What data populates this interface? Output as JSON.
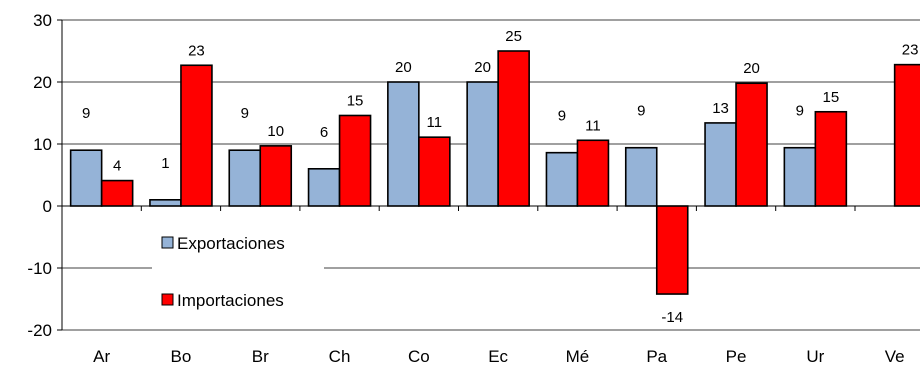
{
  "chart_data": {
    "type": "bar",
    "categories": [
      "Ar",
      "Bo",
      "Br",
      "Ch",
      "Co",
      "Ec",
      "Mé",
      "Pa",
      "Pe",
      "Ur",
      "Ve"
    ],
    "series": [
      {
        "name": "Exportaciones",
        "color": "#95b3d7",
        "values": [
          9,
          1,
          9,
          6,
          20,
          20,
          8.6,
          9.4,
          13.4,
          9.4,
          null
        ],
        "labels": [
          "9",
          "1",
          "9",
          "6",
          "20",
          "20",
          "9",
          "9",
          "13",
          "9",
          ""
        ]
      },
      {
        "name": "Importaciones",
        "color": "#ff0000",
        "values": [
          4.1,
          22.7,
          9.7,
          14.6,
          11.1,
          25,
          10.6,
          -14.2,
          19.8,
          15.2,
          22.8
        ],
        "labels": [
          "4",
          "23",
          "10",
          "15",
          "11",
          "25",
          "11",
          "-14",
          "20",
          "15",
          "23"
        ]
      }
    ],
    "yticks": [
      "-20",
      "-10",
      "0",
      "10",
      "20",
      "30"
    ],
    "ylim": [
      -20,
      30
    ],
    "grid": true,
    "legend_position": "bottom-left, inside plot"
  }
}
